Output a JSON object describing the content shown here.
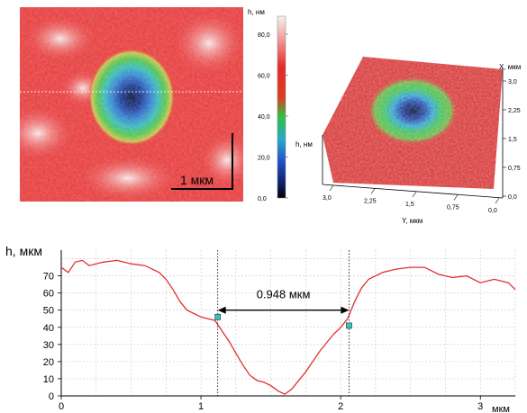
{
  "afm_map": {
    "scale_bar_label": "1 мкм",
    "colors": {
      "low": "#0a1a4a",
      "deep": "#2050c0",
      "mid_low": "#30b0c0",
      "mid": "#40c060",
      "high": "#e83030",
      "peak": "#f4dede"
    }
  },
  "colorbar": {
    "title": "h, нм",
    "ticks": [
      "80,0",
      "60,0",
      "40,0",
      "20,0",
      "0,0"
    ]
  },
  "surface": {
    "z_label": "h, нм",
    "x_label": "X, мкм",
    "y_label": "Y, мкм",
    "x_ticks": [
      "3,0",
      "2,25",
      "1,5",
      "0,75",
      "0,0"
    ],
    "y_ticks": [
      "3,0",
      "2,25",
      "1,5",
      "0,75",
      "0,0"
    ]
  },
  "chart_data": {
    "type": "line",
    "ylabel": "h, мкм",
    "xlabel": "мкм",
    "xlim": [
      0,
      3.25
    ],
    "ylim": [
      0,
      85
    ],
    "x_ticks": [
      "0",
      "1",
      "2",
      "3"
    ],
    "y_ticks": [
      "0",
      "10",
      "20",
      "30",
      "40",
      "50",
      "60",
      "70"
    ],
    "grid": true,
    "series": [
      {
        "color": "#e03030",
        "x": [
          0,
          0.05,
          0.1,
          0.15,
          0.2,
          0.3,
          0.4,
          0.5,
          0.6,
          0.7,
          0.75,
          0.8,
          0.85,
          0.9,
          0.95,
          1.0,
          1.05,
          1.1,
          1.15,
          1.2,
          1.25,
          1.3,
          1.35,
          1.4,
          1.45,
          1.5,
          1.55,
          1.6,
          1.65,
          1.7,
          1.75,
          1.8,
          1.85,
          1.9,
          1.95,
          2.0,
          2.05,
          2.1,
          2.15,
          2.2,
          2.25,
          2.3,
          2.4,
          2.5,
          2.6,
          2.7,
          2.8,
          2.9,
          3.0,
          3.1,
          3.2,
          3.25
        ],
        "y": [
          75,
          72,
          78,
          79,
          76,
          78,
          79,
          77,
          76,
          72,
          68,
          62,
          55,
          50,
          48,
          46,
          45,
          44,
          38,
          32,
          25,
          18,
          12,
          9,
          8,
          6,
          3,
          1,
          4,
          9,
          14,
          20,
          26,
          31,
          36,
          40,
          45,
          55,
          63,
          68,
          70,
          72,
          74,
          75,
          75,
          71,
          69,
          70,
          66,
          68,
          66,
          62
        ]
      }
    ],
    "markers": [
      {
        "x": 1.12,
        "y": 46
      },
      {
        "x": 2.06,
        "y": 41
      }
    ],
    "vlines": [
      1.12,
      2.06
    ],
    "annotation": {
      "label": "0.948 мкм",
      "x1": 1.12,
      "x2": 2.06,
      "y": 50
    }
  }
}
